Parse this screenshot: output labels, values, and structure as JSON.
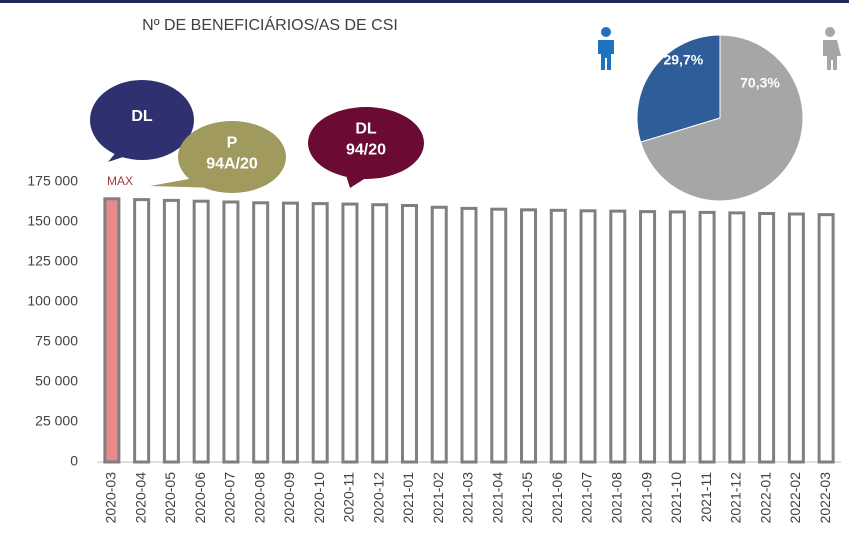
{
  "chart_data": [
    {
      "type": "bar",
      "title": "Nº DE BENEFICIÁRIOS/AS DE CSI",
      "categories": [
        "2020-03",
        "2020-04",
        "2020-05",
        "2020-06",
        "2020-07",
        "2020-08",
        "2020-09",
        "2020-10",
        "2020-11",
        "2020-12",
        "2021-01",
        "2021-02",
        "2021-03",
        "2021-04",
        "2021-05",
        "2021-06",
        "2021-07",
        "2021-08",
        "2021-09",
        "2021-10",
        "2021-11",
        "2021-12",
        "2022-01",
        "2022-02",
        "2022-03"
      ],
      "values": [
        164500,
        164000,
        163500,
        163000,
        162500,
        162000,
        161800,
        161500,
        161200,
        160800,
        160300,
        159200,
        158500,
        158000,
        157600,
        157300,
        157000,
        156800,
        156500,
        156300,
        156000,
        155700,
        155300,
        155000,
        154600
      ],
      "colors": [
        "#e8898c",
        "#ffffff",
        "#ffffff",
        "#ffffff",
        "#ffffff",
        "#ffffff",
        "#ffffff",
        "#ffffff",
        "#ffffff",
        "#ffffff",
        "#ffffff",
        "#ffffff",
        "#ffffff",
        "#ffffff",
        "#ffffff",
        "#ffffff",
        "#ffffff",
        "#ffffff",
        "#ffffff",
        "#ffffff",
        "#ffffff",
        "#ffffff",
        "#ffffff",
        "#ffffff",
        "#ffffff"
      ],
      "edgecolor": "#7f7f7f",
      "ylim": [
        0,
        175000
      ],
      "yticks": [
        0,
        {
          "value": 25000,
          "label": "25 000"
        },
        {
          "value": 50000,
          "label": "50 000"
        },
        {
          "value": 75000,
          "label": "75 000"
        },
        {
          "value": 100000,
          "label": "100 000"
        },
        {
          "value": 125000,
          "label": "125 000"
        },
        {
          "value": 150000,
          "label": "150 000"
        },
        {
          "value": 175000,
          "label": "175 000"
        }
      ],
      "grid": false,
      "annotations": [
        {
          "lines": [
            "MAX"
          ],
          "color": "#a33a3a"
        },
        {
          "lines": [
            "DL"
          ],
          "color": "#2e3070"
        },
        {
          "lines": [
            "P",
            "94A/20"
          ],
          "color": "#a09a5e"
        },
        {
          "lines": [
            "DL",
            "94/20"
          ],
          "color": "#6b0a33"
        }
      ]
    },
    {
      "type": "pie",
      "values": [
        29.7,
        70.3
      ],
      "value_labels": [
        "29,7%",
        "70,3%"
      ],
      "colors": [
        "#2e5d99",
        "#a6a6a6"
      ]
    }
  ]
}
